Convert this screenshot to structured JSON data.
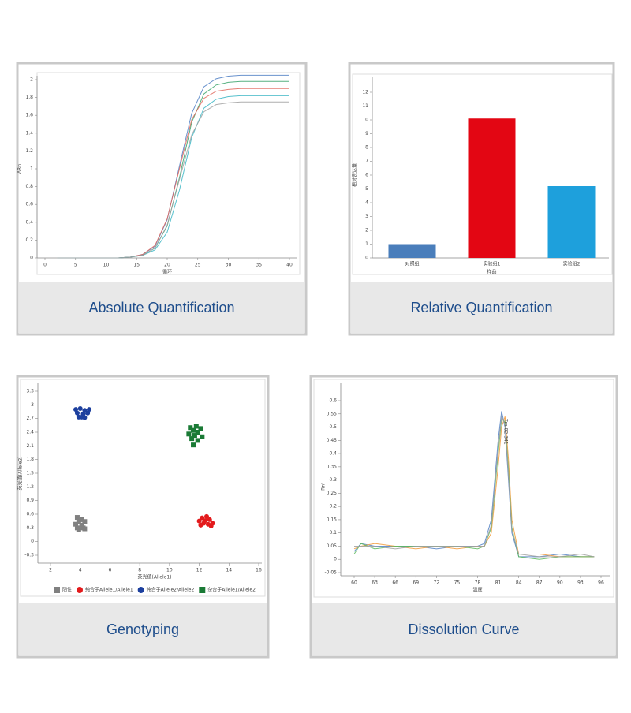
{
  "chart_data": [
    {
      "type": "line",
      "caption": "Absolute Quantification",
      "x_label": "循环",
      "y_label": "ΔRn",
      "x": [
        2,
        4,
        6,
        8,
        10,
        12,
        14,
        16,
        18,
        20,
        22,
        24,
        26,
        28,
        30,
        32,
        34,
        36,
        38,
        40
      ],
      "xlim": [
        0,
        40
      ],
      "xticks": [
        0,
        5,
        10,
        15,
        20,
        25,
        30,
        35,
        40
      ],
      "ylim": [
        0,
        2
      ],
      "yticks": [
        0,
        0.2,
        0.4,
        0.6,
        0.8,
        1,
        1.2,
        1.4,
        1.6,
        1.8,
        2
      ],
      "series": [
        {
          "color": "#4f7fc4",
          "values": [
            0,
            0,
            0,
            0,
            0,
            0,
            0.01,
            0.04,
            0.13,
            0.43,
            1.03,
            1.62,
            1.92,
            2.01,
            2.04,
            2.05,
            2.05,
            2.05,
            2.05,
            2.05
          ]
        },
        {
          "color": "#3aa36b",
          "values": [
            0,
            0,
            0,
            0,
            0,
            0,
            0.01,
            0.03,
            0.11,
            0.36,
            0.9,
            1.52,
            1.84,
            1.94,
            1.97,
            1.98,
            1.98,
            1.98,
            1.98,
            1.98
          ]
        },
        {
          "color": "#e0665a",
          "values": [
            0,
            0,
            0,
            0,
            0,
            0,
            0.01,
            0.04,
            0.14,
            0.44,
            1.0,
            1.55,
            1.79,
            1.87,
            1.89,
            1.9,
            1.9,
            1.9,
            1.9,
            1.9
          ]
        },
        {
          "color": "#3bb6c4",
          "values": [
            0,
            0,
            0,
            0,
            0,
            0,
            0.01,
            0.03,
            0.09,
            0.29,
            0.76,
            1.35,
            1.68,
            1.78,
            1.81,
            1.82,
            1.82,
            1.82,
            1.82,
            1.82
          ]
        },
        {
          "color": "#a0a0a0",
          "values": [
            0,
            0,
            0,
            0,
            0,
            0,
            0.01,
            0.03,
            0.11,
            0.37,
            0.88,
            1.38,
            1.64,
            1.72,
            1.74,
            1.75,
            1.75,
            1.75,
            1.75,
            1.75
          ]
        }
      ]
    },
    {
      "type": "bar",
      "caption": "Relative Quantification",
      "x_label": "样品",
      "y_label": "相对表达量",
      "categories": [
        "对照组",
        "实验组1",
        "实验组2"
      ],
      "values": [
        1,
        10.1,
        5.2
      ],
      "colors": [
        "#4a7ebb",
        "#e30613",
        "#1ea0dc"
      ],
      "ylim": [
        0,
        12
      ],
      "yticks": [
        0,
        1,
        2,
        3,
        4,
        5,
        6,
        7,
        8,
        9,
        10,
        11,
        12
      ]
    },
    {
      "type": "scatter",
      "caption": "Genotyping",
      "x_label": "荧光值(Allele1)",
      "y_label": "荧光值(Allele2)",
      "xlim": [
        2,
        16
      ],
      "xticks": [
        2,
        4,
        6,
        8,
        10,
        12,
        14,
        16
      ],
      "ylim": [
        -0.3,
        3.3
      ],
      "yticks": [
        -0.3,
        0,
        0.3,
        0.6,
        0.9,
        1.2,
        1.5,
        1.8,
        2.1,
        2.4,
        2.7,
        3,
        3.3
      ],
      "legend": "bottom",
      "series": [
        {
          "name": "阴性",
          "color": "#808080",
          "marker": "square",
          "x": [
            3.8,
            4.1,
            3.9,
            4.3,
            3.7,
            4.1,
            3.8,
            4.2,
            3.9,
            4.3
          ],
          "values": [
            0.53,
            0.48,
            0.43,
            0.44,
            0.38,
            0.36,
            0.3,
            0.3,
            0.26,
            0.28
          ]
        },
        {
          "name": "纯合子Allele1/Allele1",
          "color": "#e31a1c",
          "marker": "circle",
          "x": [
            12.2,
            12.5,
            12.0,
            12.4,
            12.7,
            12.3,
            12.6,
            12.9,
            12.1,
            12.8
          ],
          "values": [
            0.52,
            0.55,
            0.45,
            0.46,
            0.48,
            0.4,
            0.38,
            0.4,
            0.36,
            0.34
          ]
        },
        {
          "name": "纯合子Allele2/Allele2",
          "color": "#1c3f9e",
          "marker": "circle",
          "x": [
            3.7,
            4.0,
            4.3,
            4.6,
            3.8,
            4.2,
            4.5,
            3.9,
            4.3,
            4.1
          ],
          "values": [
            2.9,
            2.92,
            2.88,
            2.9,
            2.82,
            2.8,
            2.82,
            2.73,
            2.72,
            2.73
          ]
        },
        {
          "name": "杂合子Allele1/Allele2",
          "color": "#1a7a35",
          "marker": "square",
          "x": [
            11.4,
            11.8,
            12.1,
            11.6,
            11.9,
            11.3,
            11.7,
            12.2,
            11.5,
            11.9,
            11.6
          ],
          "values": [
            2.5,
            2.53,
            2.48,
            2.44,
            2.4,
            2.36,
            2.33,
            2.3,
            2.26,
            2.22,
            2.12
          ]
        }
      ]
    },
    {
      "type": "line",
      "caption": "Dissolution Curve",
      "x_label": "温度",
      "y_label": "Rn'",
      "annotation": "Tm:82.341",
      "x": [
        60,
        61,
        63,
        66,
        69,
        72,
        75,
        78,
        79,
        80,
        81,
        81.5,
        82,
        82.5,
        83,
        84,
        87,
        90,
        93,
        95
      ],
      "xlim": [
        60,
        96
      ],
      "xticks": [
        60,
        63,
        66,
        69,
        72,
        75,
        78,
        81,
        84,
        87,
        90,
        93,
        96
      ],
      "ylim": [
        -0.05,
        0.6
      ],
      "yticks": [
        -0.05,
        0,
        0.05,
        0.1,
        0.15,
        0.2,
        0.25,
        0.3,
        0.35,
        0.4,
        0.45,
        0.5,
        0.55,
        0.6
      ],
      "series": [
        {
          "color": "#4f7fc4",
          "values": [
            0.03,
            0.06,
            0.05,
            0.05,
            0.05,
            0.04,
            0.05,
            0.05,
            0.06,
            0.15,
            0.45,
            0.56,
            0.5,
            0.3,
            0.1,
            0.01,
            0.01,
            0.02,
            0.01,
            0.01
          ]
        },
        {
          "color": "#f29a38",
          "values": [
            0.04,
            0.05,
            0.06,
            0.05,
            0.04,
            0.05,
            0.04,
            0.05,
            0.05,
            0.1,
            0.35,
            0.5,
            0.54,
            0.38,
            0.15,
            0.02,
            0.02,
            0.01,
            0.01,
            0.01
          ]
        },
        {
          "color": "#5cb85c",
          "values": [
            0.02,
            0.06,
            0.04,
            0.05,
            0.05,
            0.05,
            0.05,
            0.04,
            0.05,
            0.12,
            0.4,
            0.53,
            0.52,
            0.34,
            0.12,
            0.01,
            0,
            0.01,
            0.01,
            0.01
          ]
        },
        {
          "color": "#a0a0a0",
          "values": [
            0.05,
            0.05,
            0.05,
            0.04,
            0.05,
            0.05,
            0.05,
            0.05,
            0.05,
            0.13,
            0.42,
            0.54,
            0.51,
            0.32,
            0.11,
            0.02,
            0.01,
            0.01,
            0.02,
            0.01
          ]
        }
      ]
    }
  ]
}
